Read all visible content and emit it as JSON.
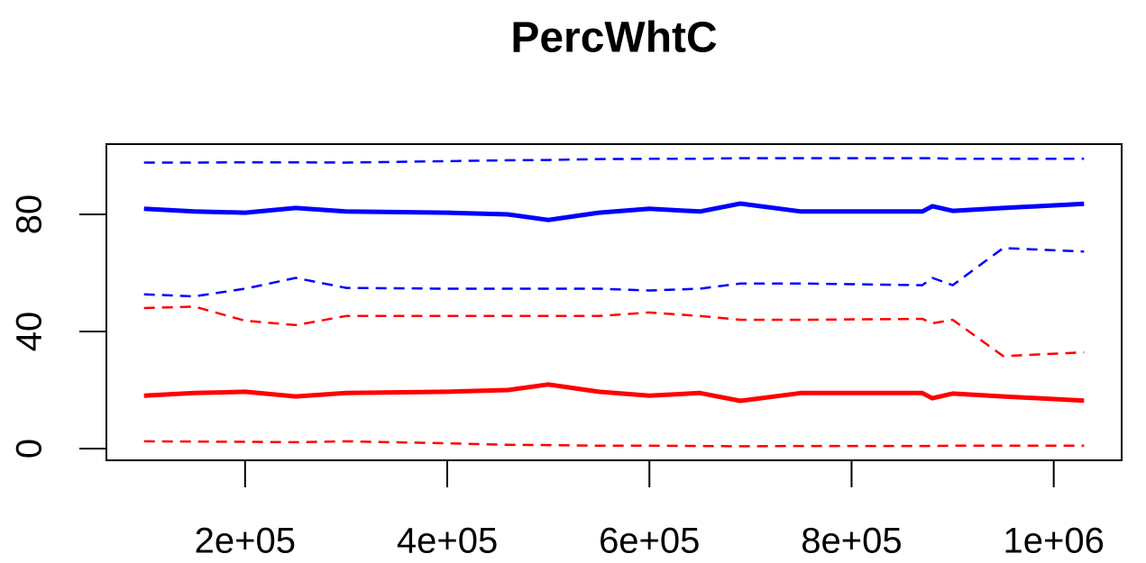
{
  "chart_data": {
    "type": "line",
    "title": "PercWhtC",
    "xlim": [
      62800,
      1067200
    ],
    "ylim": [
      -4,
      104
    ],
    "xticks": [
      {
        "value": 200000,
        "label": "2e+05"
      },
      {
        "value": 400000,
        "label": "4e+05"
      },
      {
        "value": 600000,
        "label": "6e+05"
      },
      {
        "value": 800000,
        "label": "8e+05"
      },
      {
        "value": 1000000,
        "label": "1e+06"
      }
    ],
    "yticks": [
      0,
      40,
      80
    ],
    "x": [
      100000,
      150000,
      200000,
      250000,
      300000,
      400000,
      460000,
      500000,
      550000,
      600000,
      650000,
      690000,
      750000,
      870000,
      880000,
      900000,
      950000,
      1030000
    ],
    "series": [
      {
        "color": "#0000ff",
        "dashed": false,
        "values": [
          81.9,
          81,
          80.6,
          82.2,
          81,
          80.6,
          80,
          78.1,
          80.6,
          81.9,
          81,
          83.7,
          81,
          81,
          82.8,
          81.2,
          82.2,
          83.6
        ]
      },
      {
        "color": "#0000ff",
        "dashed": true,
        "values": [
          97.7,
          97.7,
          97.8,
          97.8,
          97.7,
          98.2,
          98.5,
          98.6,
          98.9,
          99,
          99,
          99.2,
          99.2,
          99.2,
          99.2,
          99,
          99,
          99
        ]
      },
      {
        "color": "#0000ff",
        "dashed": true,
        "values": [
          52.7,
          52,
          54.6,
          58.3,
          54.9,
          54.6,
          54.6,
          54.6,
          54.6,
          54,
          54.6,
          56.4,
          56.4,
          55.8,
          58.3,
          55.8,
          68.5,
          67.3
        ]
      },
      {
        "color": "#ff0000",
        "dashed": false,
        "values": [
          18.1,
          19,
          19.4,
          17.8,
          19,
          19.4,
          20,
          21.9,
          19.4,
          18.1,
          19,
          16.3,
          19,
          19,
          17.2,
          18.8,
          17.8,
          16.4
        ]
      },
      {
        "color": "#ff0000",
        "dashed": true,
        "values": [
          48,
          48.5,
          43.7,
          42.2,
          45.3,
          45.3,
          45.3,
          45.3,
          45.3,
          46.5,
          45.3,
          44,
          44,
          44.3,
          42.8,
          44,
          31.6,
          32.9
        ]
      },
      {
        "color": "#ff0000",
        "dashed": true,
        "values": [
          2.5,
          2.4,
          2.3,
          2.2,
          2.5,
          1.8,
          1.3,
          1.2,
          1.0,
          1.0,
          0.9,
          0.8,
          0.9,
          0.9,
          0.9,
          1.0,
          1.0,
          1.0
        ]
      }
    ]
  }
}
